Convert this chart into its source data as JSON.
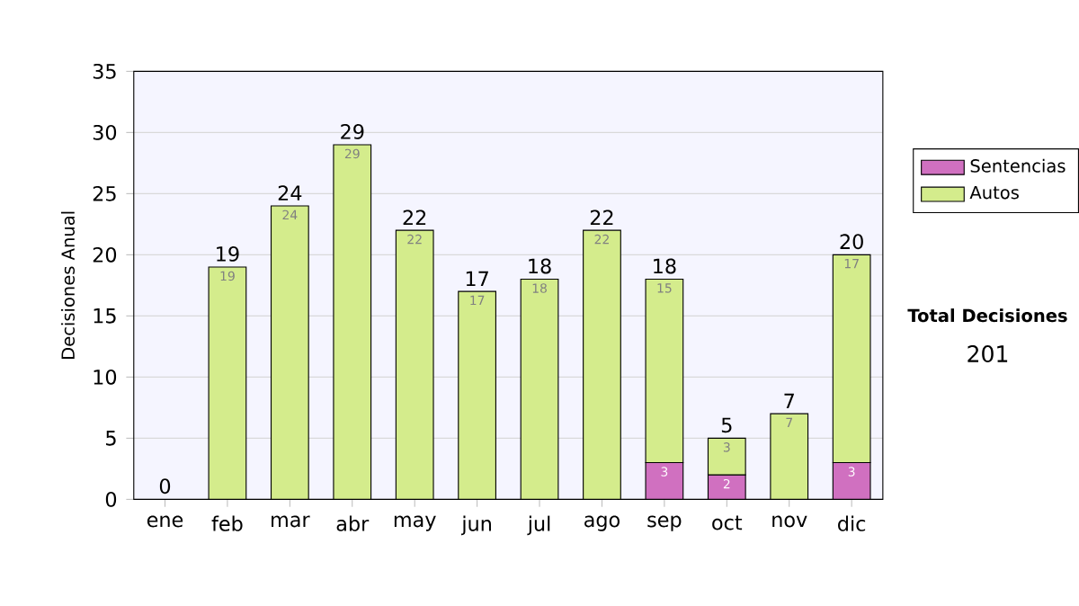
{
  "chart_data": {
    "type": "bar",
    "stacked": true,
    "ylabel": "Decisiones Anual",
    "categories": [
      "ene",
      "feb",
      "mar",
      "abr",
      "may",
      "jun",
      "jul",
      "ago",
      "sep",
      "oct",
      "nov",
      "dic"
    ],
    "series": [
      {
        "name": "Sentencias",
        "color": "#d070c0",
        "values": [
          null,
          null,
          null,
          null,
          null,
          null,
          null,
          null,
          3,
          2,
          null,
          3
        ]
      },
      {
        "name": "Autos",
        "color": "#d4ec8c",
        "values": [
          null,
          19,
          24,
          29,
          22,
          17,
          18,
          22,
          15,
          3,
          7,
          17
        ]
      }
    ],
    "totals": [
      "0",
      "19",
      "24",
      "29",
      "22",
      "17",
      "18",
      "22",
      "18",
      "5",
      "7",
      "20"
    ],
    "data_labels": true,
    "ylim": [
      0,
      35
    ],
    "yticks": [
      0,
      5,
      10,
      15,
      20,
      25,
      30,
      35
    ],
    "grid": "y",
    "legend": "right",
    "annotations": [
      "Total Decisiones",
      "201"
    ]
  }
}
